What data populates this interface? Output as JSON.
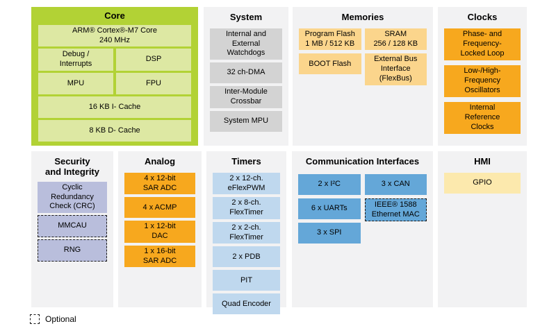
{
  "legend": {
    "label": "Optional"
  },
  "optional_modules": [
    "MMCAU",
    "RNG",
    "IEEE® 1588 Ethernet MAC"
  ],
  "colors": {
    "core_panel": "#b2d235",
    "core_box": "#dde8a3",
    "panel_bg": "#f2f2f3",
    "system_box": "#d3d3d3",
    "memories_box": "#fbd58c",
    "orange_box": "#f7a81e",
    "security_box": "#b9bedc",
    "timers_box": "#bfd8ee",
    "comm_box": "#64a7d8",
    "hmi_box": "#fce9ad"
  },
  "panels": {
    "core": {
      "title": "Core",
      "boxes": {
        "cpu": "ARM® Cortex®-M7 Core\n240 MHz",
        "debug": "Debug /\nInterrupts",
        "dsp": "DSP",
        "mpu": "MPU",
        "fpu": "FPU",
        "icache": "16 KB I- Cache",
        "dcache": "8 KB D- Cache"
      }
    },
    "system": {
      "title": "System",
      "boxes": [
        "Internal and\nExternal\nWatchdogs",
        "32 ch-DMA",
        "Inter-Module\nCrossbar",
        "System MPU"
      ]
    },
    "memories": {
      "title": "Memories",
      "boxes": {
        "program_flash": "Program Flash\n1 MB / 512 KB",
        "boot_flash": "BOOT Flash",
        "sram": "SRAM\n256 / 128 KB",
        "flexbus": "External Bus\nInterface\n(FlexBus)"
      }
    },
    "clocks": {
      "title": "Clocks",
      "boxes": [
        "Phase- and\nFrequency-\nLocked Loop",
        "Low-/High-\nFrequency\nOscillators",
        "Internal\nReference\nClocks"
      ]
    },
    "security": {
      "title": "Security\nand Integrity",
      "boxes": {
        "crc": "Cyclic\nRedundancy\nCheck (CRC)",
        "mmcau": "MMCAU",
        "rng": "RNG"
      }
    },
    "analog": {
      "title": "Analog",
      "boxes": [
        "4 x 12-bit\nSAR ADC",
        "4 x ACMP",
        "1 x 12-bit\nDAC",
        "1 x 16-bit\nSAR ADC"
      ]
    },
    "timers": {
      "title": "Timers",
      "boxes": [
        "2 x 12-ch.\neFlexPWM",
        "2 x 8-ch.\nFlexTimer",
        "2 x 2-ch.\nFlexTimer",
        "2 x PDB",
        "PIT",
        "Quad Encoder"
      ]
    },
    "comm": {
      "title": "Communication Interfaces",
      "boxes": {
        "i2c": "2 x I²C",
        "uarts": "6 x UARTs",
        "spi": "3 x SPI",
        "can": "3 x CAN",
        "ethernet": "IEEE® 1588\nEthernet MAC"
      }
    },
    "hmi": {
      "title": "HMI",
      "boxes": {
        "gpio": "GPIO"
      }
    }
  }
}
